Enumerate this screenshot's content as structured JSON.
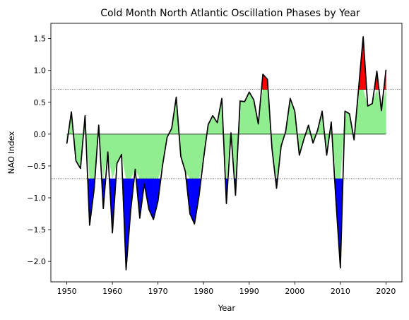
{
  "chart_data": {
    "type": "area",
    "title": "Cold Month North Atlantic Oscillation Phases by Year",
    "xlabel": "Year",
    "ylabel": "NAO Index",
    "x_ticks": [
      "1950",
      "1960",
      "1970",
      "1980",
      "1990",
      "2000",
      "2010",
      "2020"
    ],
    "y_ticks": [
      "−2.0",
      "−1.5",
      "−1.0",
      "−0.5",
      "0.0",
      "0.5",
      "1.0",
      "1.5"
    ],
    "xlim": [
      1946.5,
      2023.5
    ],
    "ylim": [
      -2.32,
      1.74
    ],
    "zero_line": 0.0,
    "upper_threshold": 0.7,
    "lower_threshold": -0.7,
    "grid": false,
    "years": [
      1950,
      1951,
      1952,
      1953,
      1954,
      1955,
      1956,
      1957,
      1958,
      1959,
      1960,
      1961,
      1962,
      1963,
      1964,
      1965,
      1966,
      1967,
      1968,
      1969,
      1970,
      1971,
      1972,
      1973,
      1974,
      1975,
      1976,
      1977,
      1978,
      1979,
      1980,
      1981,
      1982,
      1983,
      1984,
      1985,
      1986,
      1987,
      1988,
      1989,
      1990,
      1991,
      1992,
      1993,
      1994,
      1995,
      1996,
      1997,
      1998,
      1999,
      2000,
      2001,
      2002,
      2003,
      2004,
      2005,
      2006,
      2007,
      2008,
      2009,
      2010,
      2011,
      2012,
      2013,
      2014,
      2015,
      2016,
      2017,
      2018,
      2019,
      2020
    ],
    "values": [
      -0.15,
      0.35,
      -0.42,
      -0.54,
      0.29,
      -1.43,
      -0.86,
      0.14,
      -1.17,
      -0.28,
      -1.55,
      -0.46,
      -0.32,
      -2.13,
      -1.21,
      -0.55,
      -1.32,
      -0.78,
      -1.18,
      -1.34,
      -1.05,
      -0.49,
      -0.05,
      0.09,
      0.58,
      -0.35,
      -0.59,
      -1.25,
      -1.41,
      -0.97,
      -0.38,
      0.15,
      0.29,
      0.18,
      0.56,
      -1.09,
      0.02,
      -0.96,
      0.52,
      0.51,
      0.66,
      0.54,
      0.16,
      0.94,
      0.86,
      -0.23,
      -0.85,
      -0.19,
      0.04,
      0.56,
      0.36,
      -0.33,
      -0.08,
      0.14,
      -0.14,
      0.06,
      0.36,
      -0.33,
      0.19,
      -1.02,
      -2.1,
      0.36,
      0.32,
      -0.09,
      0.72,
      1.53,
      0.44,
      0.48,
      0.99,
      0.37,
      1.01
    ],
    "colors": {
      "neutral_fill": "#90ee90",
      "positive_phase_fill": "#ff0000",
      "negative_phase_fill": "#0000ff",
      "line": "#000000"
    }
  }
}
